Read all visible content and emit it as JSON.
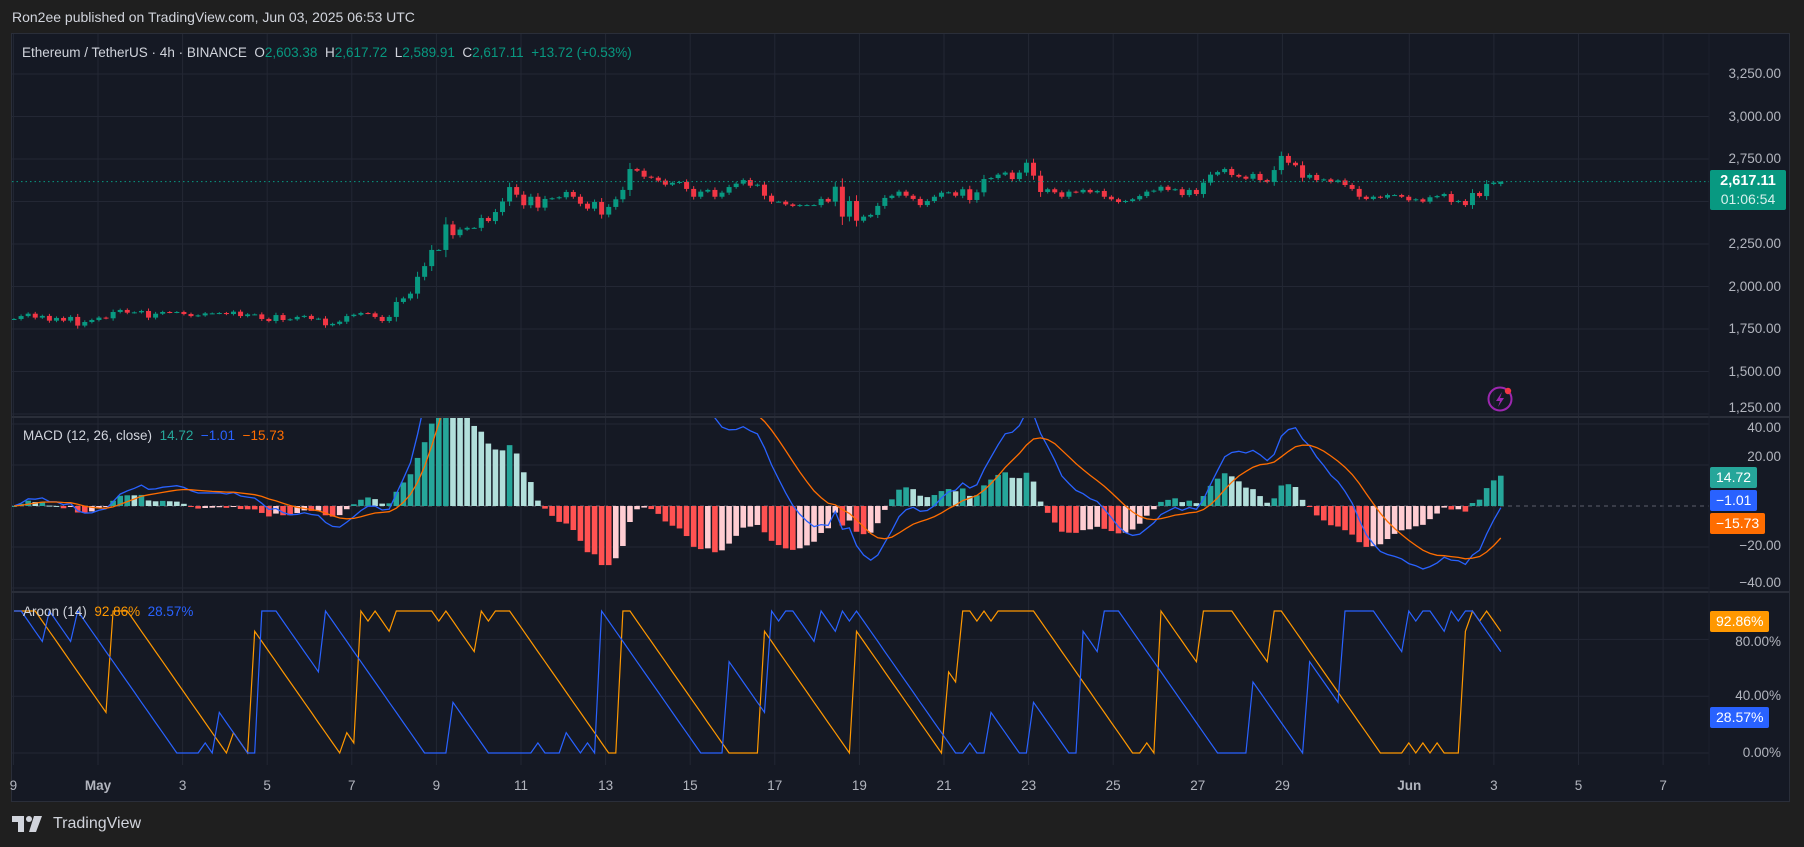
{
  "header": {
    "published": "Ron2ee published on TradingView.com, Jun 03, 2025 06:53 UTC"
  },
  "legend": {
    "symbol": "Ethereum / TetherUS · 4h · BINANCE",
    "o_label": "O",
    "o": "2,603.38",
    "h_label": "H",
    "h": "2,617.72",
    "l_label": "L",
    "l": "2,589.91",
    "c_label": "C",
    "c": "2,617.11",
    "change": "+13.72 (+0.53%)"
  },
  "price_axis": {
    "ticks": [
      {
        "value": 3250,
        "label": "3,250.00"
      },
      {
        "value": 3000,
        "label": "3,000.00"
      },
      {
        "value": 2750,
        "label": "2,750.00"
      },
      {
        "value": 2250,
        "label": "2,250.00"
      },
      {
        "value": 2000,
        "label": "2,000.00"
      },
      {
        "value": 1750,
        "label": "1,750.00"
      },
      {
        "value": 1500,
        "label": "1,500.00"
      },
      {
        "value": 1250,
        "label": "1,250.00"
      }
    ],
    "gridlines": [
      3250,
      3000,
      2750,
      2500,
      2250,
      2000,
      1750,
      1500,
      1250
    ],
    "last_price": "2,617.11",
    "countdown": "01:06:54"
  },
  "macd": {
    "title": "MACD (12, 26, close)",
    "histogram": "14.72",
    "macd": "−1.01",
    "signal": "−15.73",
    "ticks": [
      {
        "value": 40,
        "label": "40.00"
      },
      {
        "value": 20,
        "label": "20.00"
      },
      {
        "value": -20,
        "label": "−20.00"
      },
      {
        "value": -40,
        "label": "−40.00"
      }
    ],
    "range": [
      -42,
      43
    ]
  },
  "aroon": {
    "title": "Aroon (14)",
    "up": "92.86%",
    "down": "28.57%",
    "ticks": [
      {
        "value": 80,
        "label": "80.00%"
      },
      {
        "value": 40,
        "label": "40.00%"
      },
      {
        "value": 0,
        "label": "0.00%"
      }
    ],
    "range": [
      0,
      100
    ]
  },
  "time_axis": {
    "labels": [
      {
        "label": "9",
        "day": -2
      },
      {
        "label": "May",
        "day": 0,
        "bold": true
      },
      {
        "label": "3",
        "day": 2
      },
      {
        "label": "5",
        "day": 4
      },
      {
        "label": "7",
        "day": 6
      },
      {
        "label": "9",
        "day": 8
      },
      {
        "label": "11",
        "day": 10
      },
      {
        "label": "13",
        "day": 12
      },
      {
        "label": "15",
        "day": 14
      },
      {
        "label": "17",
        "day": 16
      },
      {
        "label": "19",
        "day": 18
      },
      {
        "label": "21",
        "day": 20
      },
      {
        "label": "23",
        "day": 22
      },
      {
        "label": "25",
        "day": 24
      },
      {
        "label": "27",
        "day": 26
      },
      {
        "label": "29",
        "day": 28
      },
      {
        "label": "Jun",
        "day": 31,
        "bold": true
      },
      {
        "label": "3",
        "day": 33
      },
      {
        "label": "5",
        "day": 35
      },
      {
        "label": "7",
        "day": 37
      }
    ]
  },
  "colors": {
    "up": "#089981",
    "down": "#f23645",
    "macd_line": "#2962ff",
    "signal_line": "#ff6d00",
    "hist_up_strong": "#26a69a",
    "hist_up_weak": "#b2dfdb",
    "hist_down_strong": "#ff5252",
    "hist_down_weak": "#ffcdd2",
    "aroon_up": "#ff9800",
    "aroon_down": "#2962ff",
    "background": "#151924",
    "grid": "#232734"
  },
  "icons": {
    "alert": "lightning-alert-icon",
    "logo": "tradingview-logo-icon"
  },
  "branding": "TradingView",
  "chart_data": {
    "type": "candlestick",
    "symbol": "ETHUSDT",
    "interval": "4h",
    "first_candle": "2025-04-29 00:00",
    "ylim": [
      1250,
      3250
    ],
    "grid": true,
    "last_ohlc": [
      2603.38,
      2617.72,
      2589.91,
      2617.11
    ],
    "closes": [
      1809,
      1826,
      1840,
      1817,
      1827,
      1799,
      1815,
      1799,
      1821,
      1770,
      1791,
      1803,
      1817,
      1813,
      1850,
      1862,
      1846,
      1848,
      1856,
      1817,
      1840,
      1850,
      1848,
      1850,
      1838,
      1826,
      1830,
      1842,
      1842,
      1844,
      1838,
      1852,
      1826,
      1836,
      1836,
      1809,
      1797,
      1832,
      1803,
      1807,
      1821,
      1827,
      1809,
      1811,
      1772,
      1780,
      1793,
      1826,
      1834,
      1844,
      1842,
      1821,
      1797,
      1821,
      1909,
      1930,
      1958,
      2057,
      2120,
      2215,
      2215,
      2365,
      2302,
      2335,
      2345,
      2345,
      2403,
      2385,
      2438,
      2500,
      2585,
      2540,
      2478,
      2528,
      2464,
      2515,
      2519,
      2525,
      2556,
      2528,
      2487,
      2458,
      2497,
      2423,
      2468,
      2513,
      2568,
      2691,
      2681,
      2646,
      2640,
      2623,
      2599,
      2610,
      2615,
      2574,
      2528,
      2558,
      2568,
      2528,
      2552,
      2585,
      2605,
      2626,
      2593,
      2599,
      2534,
      2499,
      2499,
      2483,
      2474,
      2479,
      2479,
      2479,
      2515,
      2499,
      2587,
      2411,
      2503,
      2387,
      2411,
      2421,
      2474,
      2521,
      2534,
      2558,
      2534,
      2515,
      2479,
      2503,
      2528,
      2552,
      2554,
      2534,
      2572,
      2509,
      2554,
      2632,
      2638,
      2658,
      2670,
      2632,
      2670,
      2728,
      2652,
      2556,
      2572,
      2554,
      2528,
      2558,
      2554,
      2568,
      2554,
      2562,
      2528,
      2513,
      2497,
      2503,
      2513,
      2532,
      2558,
      2564,
      2587,
      2568,
      2572,
      2538,
      2568,
      2544,
      2611,
      2658,
      2673,
      2691,
      2656,
      2646,
      2634,
      2662,
      2626,
      2615,
      2685,
      2768,
      2728,
      2713,
      2640,
      2656,
      2626,
      2630,
      2615,
      2624,
      2597,
      2574,
      2528,
      2515,
      2528,
      2523,
      2538,
      2538,
      2528,
      2507,
      2513,
      2499,
      2525,
      2532,
      2544,
      2497,
      2503,
      2479,
      2550,
      2532,
      2603.38,
      2611,
      2617.11
    ],
    "indicators": [
      "MACD (12, 26, close)",
      "Aroon (14)"
    ]
  }
}
